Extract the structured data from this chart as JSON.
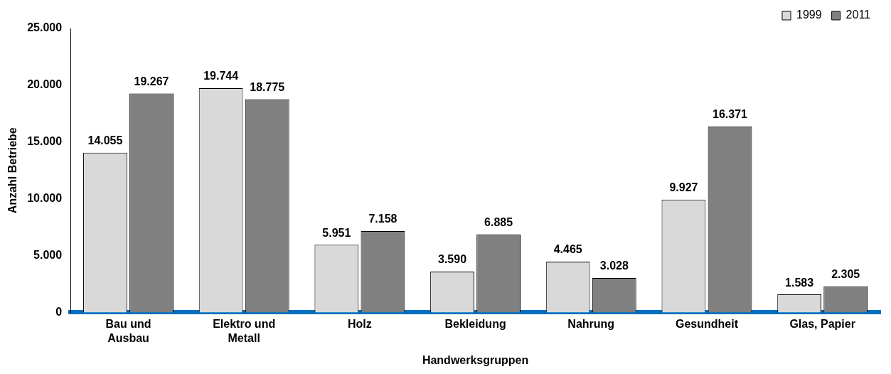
{
  "chart_data": {
    "type": "bar",
    "xlabel": "Handwerksgruppen",
    "ylabel": "Anzahl Betriebe",
    "categories": [
      "Bau und Ausbau",
      "Elektro und Metall",
      "Holz",
      "Bekleidung",
      "Nahrung",
      "Gesundheit",
      "Glas, Papier"
    ],
    "series": [
      {
        "name": "1999",
        "color": "#d9d9d9",
        "values": [
          14055,
          19744,
          5951,
          3590,
          4465,
          9927,
          1583
        ],
        "value_labels": [
          "14.055",
          "19.744",
          "5.951",
          "3.590",
          "4.465",
          "9.927",
          "1.583"
        ]
      },
      {
        "name": "2011",
        "color": "#808080",
        "values": [
          19267,
          18775,
          7158,
          6885,
          3028,
          16371,
          2305
        ],
        "value_labels": [
          "19.267",
          "18.775",
          "7.158",
          "6.885",
          "3.028",
          "16.371",
          "2.305"
        ]
      }
    ],
    "ylim": [
      0,
      25000
    ],
    "yticks": [
      {
        "value": 0,
        "label": "0"
      },
      {
        "value": 5000,
        "label": "5.000"
      },
      {
        "value": 10000,
        "label": "10.000"
      },
      {
        "value": 15000,
        "label": "15.000"
      },
      {
        "value": 20000,
        "label": "20.000"
      },
      {
        "value": 25000,
        "label": "25.000"
      }
    ],
    "grid": false,
    "legend": "top right"
  }
}
